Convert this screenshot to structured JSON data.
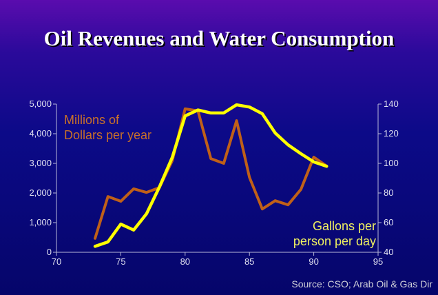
{
  "chart_data": {
    "type": "line",
    "title": "Oil Revenues and Water Consumption",
    "x": [
      73,
      74,
      75,
      76,
      77,
      78,
      79,
      80,
      81,
      82,
      83,
      84,
      85,
      86,
      87,
      88,
      89,
      90,
      91
    ],
    "xlim": [
      70,
      95
    ],
    "xticks": [
      "70",
      "75",
      "80",
      "85",
      "90",
      "95"
    ],
    "series": [
      {
        "name": "Millions of Dollars per year",
        "axis": "left",
        "color": "#c06018",
        "values": [
          470,
          1880,
          1720,
          2140,
          2020,
          2180,
          3090,
          4840,
          4770,
          3160,
          3000,
          4440,
          2530,
          1460,
          1740,
          1600,
          2120,
          3210,
          2910
        ]
      },
      {
        "name": "Gallons per person per day",
        "axis": "right",
        "color": "#ffff00",
        "values": [
          44,
          47,
          59,
          55,
          66,
          84,
          104,
          132,
          136,
          134,
          134,
          139.5,
          138,
          133.5,
          120.5,
          112.5,
          106.5,
          101,
          98
        ]
      }
    ],
    "ylim_left": [
      0,
      5000
    ],
    "yticks_left": [
      "0",
      "1,000",
      "2,000",
      "3,000",
      "4,000",
      "5,000"
    ],
    "ylim_right": [
      40,
      140
    ],
    "yticks_right": [
      "40",
      "60",
      "80",
      "100",
      "120",
      "140"
    ],
    "legend_left_line1": "Millions of",
    "legend_left_line2": "Dollars per year",
    "legend_right_line1": "Gallons per",
    "legend_right_line2": "person per day",
    "source": "Source: CSO; Arab Oil & Gas Dir"
  }
}
